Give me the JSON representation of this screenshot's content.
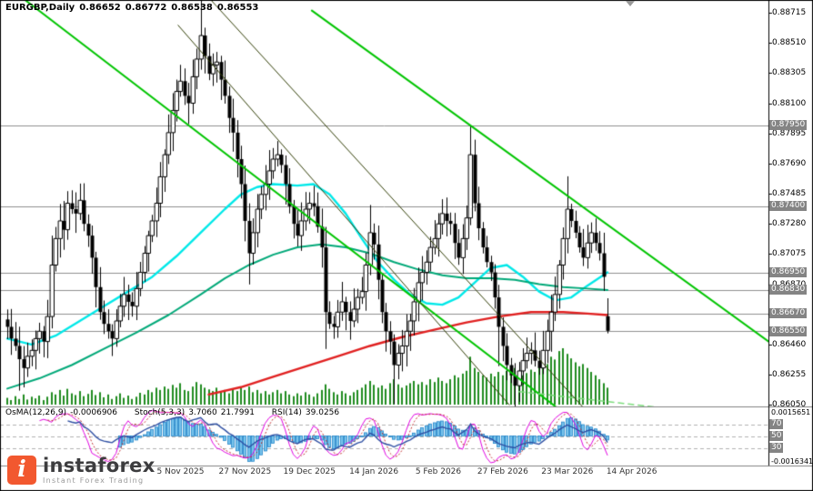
{
  "header": {
    "symbol": "EURGBP,Daily",
    "open": "0.86652",
    "high": "0.86772",
    "low": "0.86538",
    "close": "0.86553"
  },
  "indicator_header": {
    "osma_label": "OsMA(12,26,9)",
    "osma_value": "-0.0006906",
    "stoch_label": "Stoch(5,3,3)",
    "stoch_main": "3.7060",
    "stoch_signal": "21.7991",
    "rsi_label": "RSI(14)",
    "rsi_value": "39.0256"
  },
  "price_axis": {
    "ticks": [
      "0.88715",
      "0.88510",
      "0.88305",
      "0.88100",
      "0.87895",
      "0.87690",
      "0.87485",
      "0.87280",
      "0.87075",
      "0.86870",
      "0.86665",
      "0.86460",
      "0.86255",
      "0.86050"
    ],
    "level_badges": [
      "0.87950",
      "0.87400",
      "0.86950",
      "0.86830",
      "0.86670",
      "0.86550"
    ]
  },
  "indicator_axis": {
    "top": "0.0015651",
    "levels": [
      "70",
      "50",
      "30"
    ],
    "bottom": "-0.0016341"
  },
  "date_axis": {
    "labels": [
      {
        "text": "5 Nov 2025",
        "i": 43
      },
      {
        "text": "27 Nov 2025",
        "i": 59
      },
      {
        "text": "19 Dec 2025",
        "i": 75
      },
      {
        "text": "14 Jan 2026",
        "i": 91
      },
      {
        "text": "5 Feb 2026",
        "i": 107
      },
      {
        "text": "27 Feb 2026",
        "i": 123
      },
      {
        "text": "23 Mar 2026",
        "i": 139
      },
      {
        "text": "14 Apr 2026",
        "i": 155
      }
    ]
  },
  "logo": {
    "brand": "instaforex",
    "tagline": "Instant Forex Trading",
    "accent": "#F2582F"
  },
  "chart_data": {
    "type": "candlestick",
    "title": "EURGBP, Daily",
    "symbol": "EURGBP",
    "timeframe": "Daily",
    "y_range": [
      0.8603,
      0.888
    ],
    "last_candle": {
      "open": 0.86652,
      "high": 0.86772,
      "low": 0.86538,
      "close": 0.86553
    },
    "closes": [
      0.8658,
      0.865,
      0.8645,
      0.8636,
      0.863,
      0.8638,
      0.8642,
      0.865,
      0.8655,
      0.8648,
      0.8665,
      0.87,
      0.8718,
      0.873,
      0.8724,
      0.8742,
      0.8738,
      0.8735,
      0.8744,
      0.8728,
      0.872,
      0.8705,
      0.8685,
      0.8668,
      0.866,
      0.8655,
      0.865,
      0.8662,
      0.8672,
      0.868,
      0.8675,
      0.8672,
      0.8684,
      0.8695,
      0.8708,
      0.872,
      0.873,
      0.8742,
      0.876,
      0.8775,
      0.879,
      0.8805,
      0.8818,
      0.8825,
      0.8815,
      0.881,
      0.8828,
      0.884,
      0.8856,
      0.8842,
      0.883,
      0.8836,
      0.8838,
      0.8826,
      0.8815,
      0.88,
      0.879,
      0.8772,
      0.8755,
      0.873,
      0.8708,
      0.8722,
      0.8738,
      0.8748,
      0.8755,
      0.8764,
      0.8772,
      0.8775,
      0.8768,
      0.8755,
      0.874,
      0.8728,
      0.872,
      0.873,
      0.8738,
      0.8742,
      0.874,
      0.8726,
      0.8712,
      0.8668,
      0.866,
      0.8658,
      0.8668,
      0.8675,
      0.8668,
      0.8662,
      0.867,
      0.8678,
      0.8682,
      0.87,
      0.8722,
      0.8714,
      0.869,
      0.8668,
      0.8655,
      0.8648,
      0.8632,
      0.864,
      0.8645,
      0.8655,
      0.8662,
      0.8675,
      0.8688,
      0.8695,
      0.8702,
      0.8712,
      0.8718,
      0.8728,
      0.8735,
      0.873,
      0.8728,
      0.8715,
      0.8705,
      0.8718,
      0.8732,
      0.8775,
      0.8742,
      0.8725,
      0.8712,
      0.8702,
      0.8695,
      0.8678,
      0.8658,
      0.8645,
      0.8632,
      0.8625,
      0.8618,
      0.8628,
      0.8635,
      0.864,
      0.8642,
      0.8635,
      0.863,
      0.8642,
      0.8655,
      0.8668,
      0.868,
      0.87,
      0.8718,
      0.8738,
      0.873,
      0.8722,
      0.8712,
      0.8705,
      0.8715,
      0.8722,
      0.8715,
      0.8708,
      0.8692,
      0.86553
    ],
    "volumes": [
      0.12,
      0.08,
      0.15,
      0.1,
      0.18,
      0.09,
      0.14,
      0.11,
      0.16,
      0.08,
      0.14,
      0.22,
      0.18,
      0.26,
      0.16,
      0.28,
      0.2,
      0.17,
      0.24,
      0.15,
      0.19,
      0.26,
      0.17,
      0.22,
      0.13,
      0.18,
      0.1,
      0.15,
      0.2,
      0.12,
      0.16,
      0.1,
      0.14,
      0.21,
      0.18,
      0.26,
      0.22,
      0.3,
      0.26,
      0.32,
      0.28,
      0.35,
      0.3,
      0.38,
      0.26,
      0.24,
      0.32,
      0.4,
      0.36,
      0.3,
      0.27,
      0.24,
      0.3,
      0.22,
      0.26,
      0.2,
      0.28,
      0.24,
      0.3,
      0.26,
      0.32,
      0.22,
      0.26,
      0.2,
      0.24,
      0.18,
      0.22,
      0.26,
      0.2,
      0.24,
      0.18,
      0.15,
      0.2,
      0.16,
      0.22,
      0.18,
      0.14,
      0.2,
      0.26,
      0.36,
      0.28,
      0.22,
      0.18,
      0.24,
      0.2,
      0.16,
      0.22,
      0.26,
      0.3,
      0.36,
      0.42,
      0.35,
      0.3,
      0.34,
      0.28,
      0.38,
      0.45,
      0.36,
      0.3,
      0.34,
      0.38,
      0.42,
      0.36,
      0.4,
      0.35,
      0.45,
      0.4,
      0.48,
      0.42,
      0.38,
      0.45,
      0.52,
      0.48,
      0.55,
      0.6,
      0.85,
      0.65,
      0.58,
      0.52,
      0.48,
      0.55,
      0.5,
      0.58,
      0.52,
      0.6,
      0.55,
      0.65,
      0.58,
      0.52,
      0.56,
      0.62,
      0.58,
      0.7,
      0.78,
      0.72,
      0.85,
      0.8,
      0.95,
      1.0,
      0.9,
      0.82,
      0.75,
      0.68,
      0.72,
      0.65,
      0.58,
      0.52,
      0.45,
      0.38,
      0.3
    ],
    "wick_spikes_high": [
      11,
      48,
      90,
      115,
      139
    ],
    "wick_spikes_low": [
      3,
      60,
      79,
      96,
      122,
      126
    ],
    "support_resistance_levels": [
      0.8795,
      0.874,
      0.8695,
      0.8683,
      0.8667,
      0.8655
    ],
    "moving_averages": [
      {
        "name": "ma-fast-cyan",
        "color": "#00E8E8",
        "width": 2.4,
        "points": [
          [
            0,
            0.865
          ],
          [
            6,
            0.8646
          ],
          [
            12,
            0.8652
          ],
          [
            18,
            0.8662
          ],
          [
            24,
            0.8672
          ],
          [
            30,
            0.8682
          ],
          [
            36,
            0.8692
          ],
          [
            42,
            0.8706
          ],
          [
            48,
            0.8722
          ],
          [
            54,
            0.8738
          ],
          [
            58,
            0.8748
          ],
          [
            62,
            0.8753
          ],
          [
            66,
            0.8755
          ],
          [
            72,
            0.8754
          ],
          [
            76,
            0.8755
          ],
          [
            80,
            0.8748
          ],
          [
            84,
            0.8735
          ],
          [
            88,
            0.8718
          ],
          [
            92,
            0.8702
          ],
          [
            96,
            0.869
          ],
          [
            100,
            0.868
          ],
          [
            104,
            0.8674
          ],
          [
            108,
            0.8673
          ],
          [
            112,
            0.8678
          ],
          [
            116,
            0.8688
          ],
          [
            120,
            0.8698
          ],
          [
            124,
            0.87
          ],
          [
            128,
            0.8692
          ],
          [
            132,
            0.8682
          ],
          [
            136,
            0.8676
          ],
          [
            140,
            0.8678
          ],
          [
            144,
            0.8686
          ],
          [
            149,
            0.8695
          ]
        ]
      },
      {
        "name": "ma-mid-green",
        "color": "#00A878",
        "width": 2,
        "points": [
          [
            0,
            0.8616
          ],
          [
            8,
            0.8623
          ],
          [
            16,
            0.8632
          ],
          [
            24,
            0.8643
          ],
          [
            32,
            0.8654
          ],
          [
            40,
            0.8666
          ],
          [
            48,
            0.868
          ],
          [
            54,
            0.8691
          ],
          [
            60,
            0.87
          ],
          [
            66,
            0.8707
          ],
          [
            72,
            0.8712
          ],
          [
            78,
            0.8714
          ],
          [
            84,
            0.8712
          ],
          [
            90,
            0.8708
          ],
          [
            96,
            0.8702
          ],
          [
            102,
            0.8697
          ],
          [
            108,
            0.8693
          ],
          [
            114,
            0.8691
          ],
          [
            120,
            0.8691
          ],
          [
            126,
            0.869
          ],
          [
            132,
            0.8687
          ],
          [
            138,
            0.8685
          ],
          [
            144,
            0.8684
          ],
          [
            149,
            0.8683
          ]
        ]
      },
      {
        "name": "ma-slow-red",
        "color": "#E02020",
        "width": 2.4,
        "points": [
          [
            50,
            0.8612
          ],
          [
            58,
            0.8617
          ],
          [
            66,
            0.8624
          ],
          [
            74,
            0.8631
          ],
          [
            82,
            0.8638
          ],
          [
            90,
            0.8645
          ],
          [
            98,
            0.8651
          ],
          [
            106,
            0.8656
          ],
          [
            114,
            0.8661
          ],
          [
            122,
            0.8665
          ],
          [
            130,
            0.8668
          ],
          [
            138,
            0.8668
          ],
          [
            144,
            0.8667
          ],
          [
            149,
            0.8666
          ]
        ]
      }
    ],
    "trendlines": [
      {
        "name": "channel-line-left",
        "color": "#00C400",
        "width": 2,
        "dash": [],
        "from": [
          4.5,
          0.888
        ],
        "to": [
          136,
          0.8604
        ]
      },
      {
        "name": "channel-line-right",
        "color": "#00C400",
        "width": 2,
        "dash": [],
        "from": [
          75.6,
          0.8873
        ],
        "to": [
          189,
          0.8648
        ]
      },
      {
        "name": "channel-extension-dashed",
        "color": "#7CDC7C",
        "width": 1.5,
        "dash": [
          6,
          5
        ],
        "from": [
          127,
          0.8614
        ],
        "to": [
          172,
          0.86
        ]
      },
      {
        "name": "inner-trendline-1",
        "color": "#2E3B00",
        "width": 1,
        "dash": [],
        "from": [
          42.4,
          0.8863
        ],
        "to": [
          124.6,
          0.8605
        ]
      },
      {
        "name": "inner-trendline-2",
        "color": "#2E3B00",
        "width": 1,
        "dash": [],
        "from": [
          50.6,
          0.888
        ],
        "to": [
          142.7,
          0.8604
        ]
      }
    ],
    "indicator_panel": {
      "levels": [
        70,
        50,
        30
      ],
      "osma_scale": {
        "max": 0.0015651,
        "min": -0.0016341
      }
    },
    "colors": {
      "volume": "#1F8B1F",
      "candle_up": "#FFFFFF",
      "candle_down": "#000000",
      "wick": "#000000",
      "level_line": "#8f8f8f",
      "osma_fill": "#79C4EC",
      "osma_stroke": "#1E82C8",
      "stoch": "#E000E0",
      "stoch_signal": "#C03030",
      "rsi": "#2E4FA3",
      "panel_level": "#b0b0b0",
      "badge_bg": "#848484",
      "trend_green": "#00C400"
    }
  }
}
